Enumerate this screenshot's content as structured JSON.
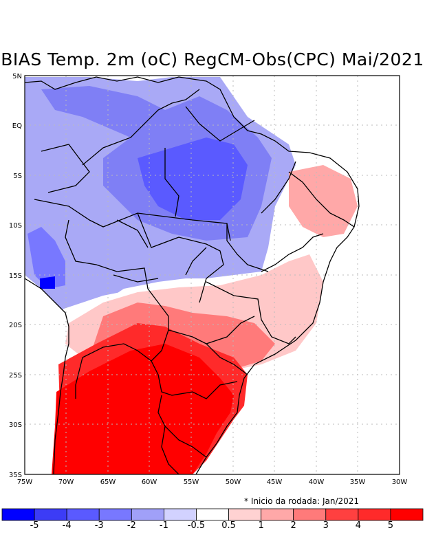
{
  "title": "BIAS Temp. 2m (oC) RegCM-Obs(CPC) Mai/2021",
  "note": "* Inicio da rodada: Jan/2021",
  "lat_labels": [
    "5N",
    "EQ",
    "5S",
    "10S",
    "15S",
    "20S",
    "25S",
    "30S",
    "35S"
  ],
  "lon_labels": [
    "75W",
    "70W",
    "65W",
    "60W",
    "55W",
    "50W",
    "45W",
    "40W",
    "35W",
    "30W"
  ],
  "colorbar": {
    "labels": [
      "-5",
      "-4",
      "-3",
      "-2",
      "-1",
      "-0.5",
      "0.5",
      "1",
      "2",
      "3",
      "4",
      "5"
    ],
    "colors": [
      "#0000ff",
      "#3c3cf6",
      "#5a5aff",
      "#7878ff",
      "#a0a0f8",
      "#d2d2ff",
      "#ffffff",
      "#ffd2d2",
      "#ffa8a8",
      "#ff7a7a",
      "#ff4040",
      "#ff2a2a",
      "#ff0000"
    ]
  },
  "palette": {
    "gridline": "#bbbbbb",
    "border": "#000000"
  }
}
